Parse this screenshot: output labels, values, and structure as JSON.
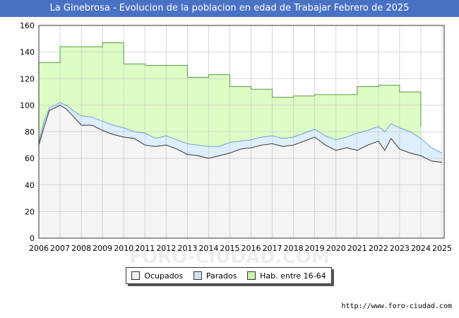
{
  "title": "La Ginebrosa - Evolucion de la poblacion en edad de Trabajar Febrero de 2025",
  "source": "http://www.foro-ciudad.com",
  "watermark": "FORO-CIUDAD.COM",
  "colors": {
    "title_bg": "#4a72c4",
    "hab_fill": "#ddfdc4",
    "hab_line": "#5a9c48",
    "parados_fill": "#ddeefc",
    "parados_line": "#6aa0d8",
    "ocupados_fill": "#f4f4f4",
    "ocupados_line": "#333333",
    "grid": "#cccccc"
  },
  "legend": [
    {
      "label": "Ocupados",
      "color": "#f0f0f0"
    },
    {
      "label": "Parados",
      "color": "#cfe3f8"
    },
    {
      "label": "Hab. entre 16-64",
      "color": "#ccf5a8"
    }
  ],
  "chart_data": {
    "type": "area",
    "title": "La Ginebrosa - Evolucion de la poblacion en edad de Trabajar Febrero de 2025",
    "xlabel": "",
    "ylabel": "",
    "xlim": [
      2006,
      2025.1
    ],
    "ylim": [
      0,
      160
    ],
    "yticks": [
      0,
      20,
      40,
      60,
      80,
      100,
      120,
      140,
      160
    ],
    "xticks": [
      2006,
      2007,
      2008,
      2009,
      2010,
      2011,
      2012,
      2013,
      2014,
      2015,
      2016,
      2017,
      2018,
      2019,
      2020,
      2021,
      2022,
      2023,
      2024,
      2025
    ],
    "grid": true,
    "legend_position": "bottom",
    "series": [
      {
        "name": "Hab. entre 16-64",
        "step": true,
        "x": [
          2006,
          2007,
          2009,
          2010,
          2011,
          2013,
          2014,
          2015,
          2016,
          2017,
          2018,
          2019,
          2021,
          2022,
          2023,
          2024
        ],
        "values": [
          132,
          144,
          147,
          131,
          130,
          121,
          123,
          114,
          112,
          106,
          107,
          108,
          114,
          115,
          110,
          84
        ],
        "x_end": 2024
      },
      {
        "name": "Parados",
        "x": [
          2006,
          2006.25,
          2006.5,
          2007,
          2007.3,
          2007.6,
          2008,
          2008.5,
          2009,
          2009.5,
          2010,
          2010.5,
          2011,
          2011.5,
          2012,
          2012.5,
          2013,
          2013.5,
          2014,
          2014.5,
          2015,
          2015.5,
          2016,
          2016.5,
          2017,
          2017.5,
          2018,
          2018.5,
          2019,
          2019.5,
          2020,
          2020.5,
          2021,
          2021.5,
          2022,
          2022.3,
          2022.6,
          2023,
          2023.5,
          2024,
          2024.5,
          2025
        ],
        "values": [
          72,
          88,
          98,
          102,
          100,
          96,
          92,
          91,
          88,
          85,
          83,
          80,
          79,
          75,
          77,
          74,
          71,
          70,
          69,
          69,
          72,
          73,
          74,
          76,
          77,
          75,
          76,
          79,
          82,
          77,
          74,
          76,
          79,
          81,
          84,
          80,
          86,
          83,
          80,
          75,
          68,
          64
        ]
      },
      {
        "name": "Ocupados",
        "x": [
          2006,
          2006.25,
          2006.5,
          2007,
          2007.3,
          2007.6,
          2008,
          2008.5,
          2009,
          2009.5,
          2010,
          2010.5,
          2011,
          2011.5,
          2012,
          2012.5,
          2013,
          2013.5,
          2014,
          2014.5,
          2015,
          2015.5,
          2016,
          2016.5,
          2017,
          2017.5,
          2018,
          2018.5,
          2019,
          2019.5,
          2020,
          2020.5,
          2021,
          2021.5,
          2022,
          2022.3,
          2022.6,
          2023,
          2023.5,
          2024,
          2024.5,
          2025
        ],
        "values": [
          70,
          84,
          96,
          100,
          97,
          92,
          85,
          85,
          81,
          78,
          76,
          75,
          70,
          69,
          70,
          67,
          63,
          62,
          60,
          62,
          64,
          67,
          68,
          70,
          71,
          69,
          70,
          73,
          76,
          70,
          66,
          68,
          66,
          70,
          73,
          66,
          75,
          67,
          64,
          62,
          58,
          57
        ]
      }
    ]
  }
}
